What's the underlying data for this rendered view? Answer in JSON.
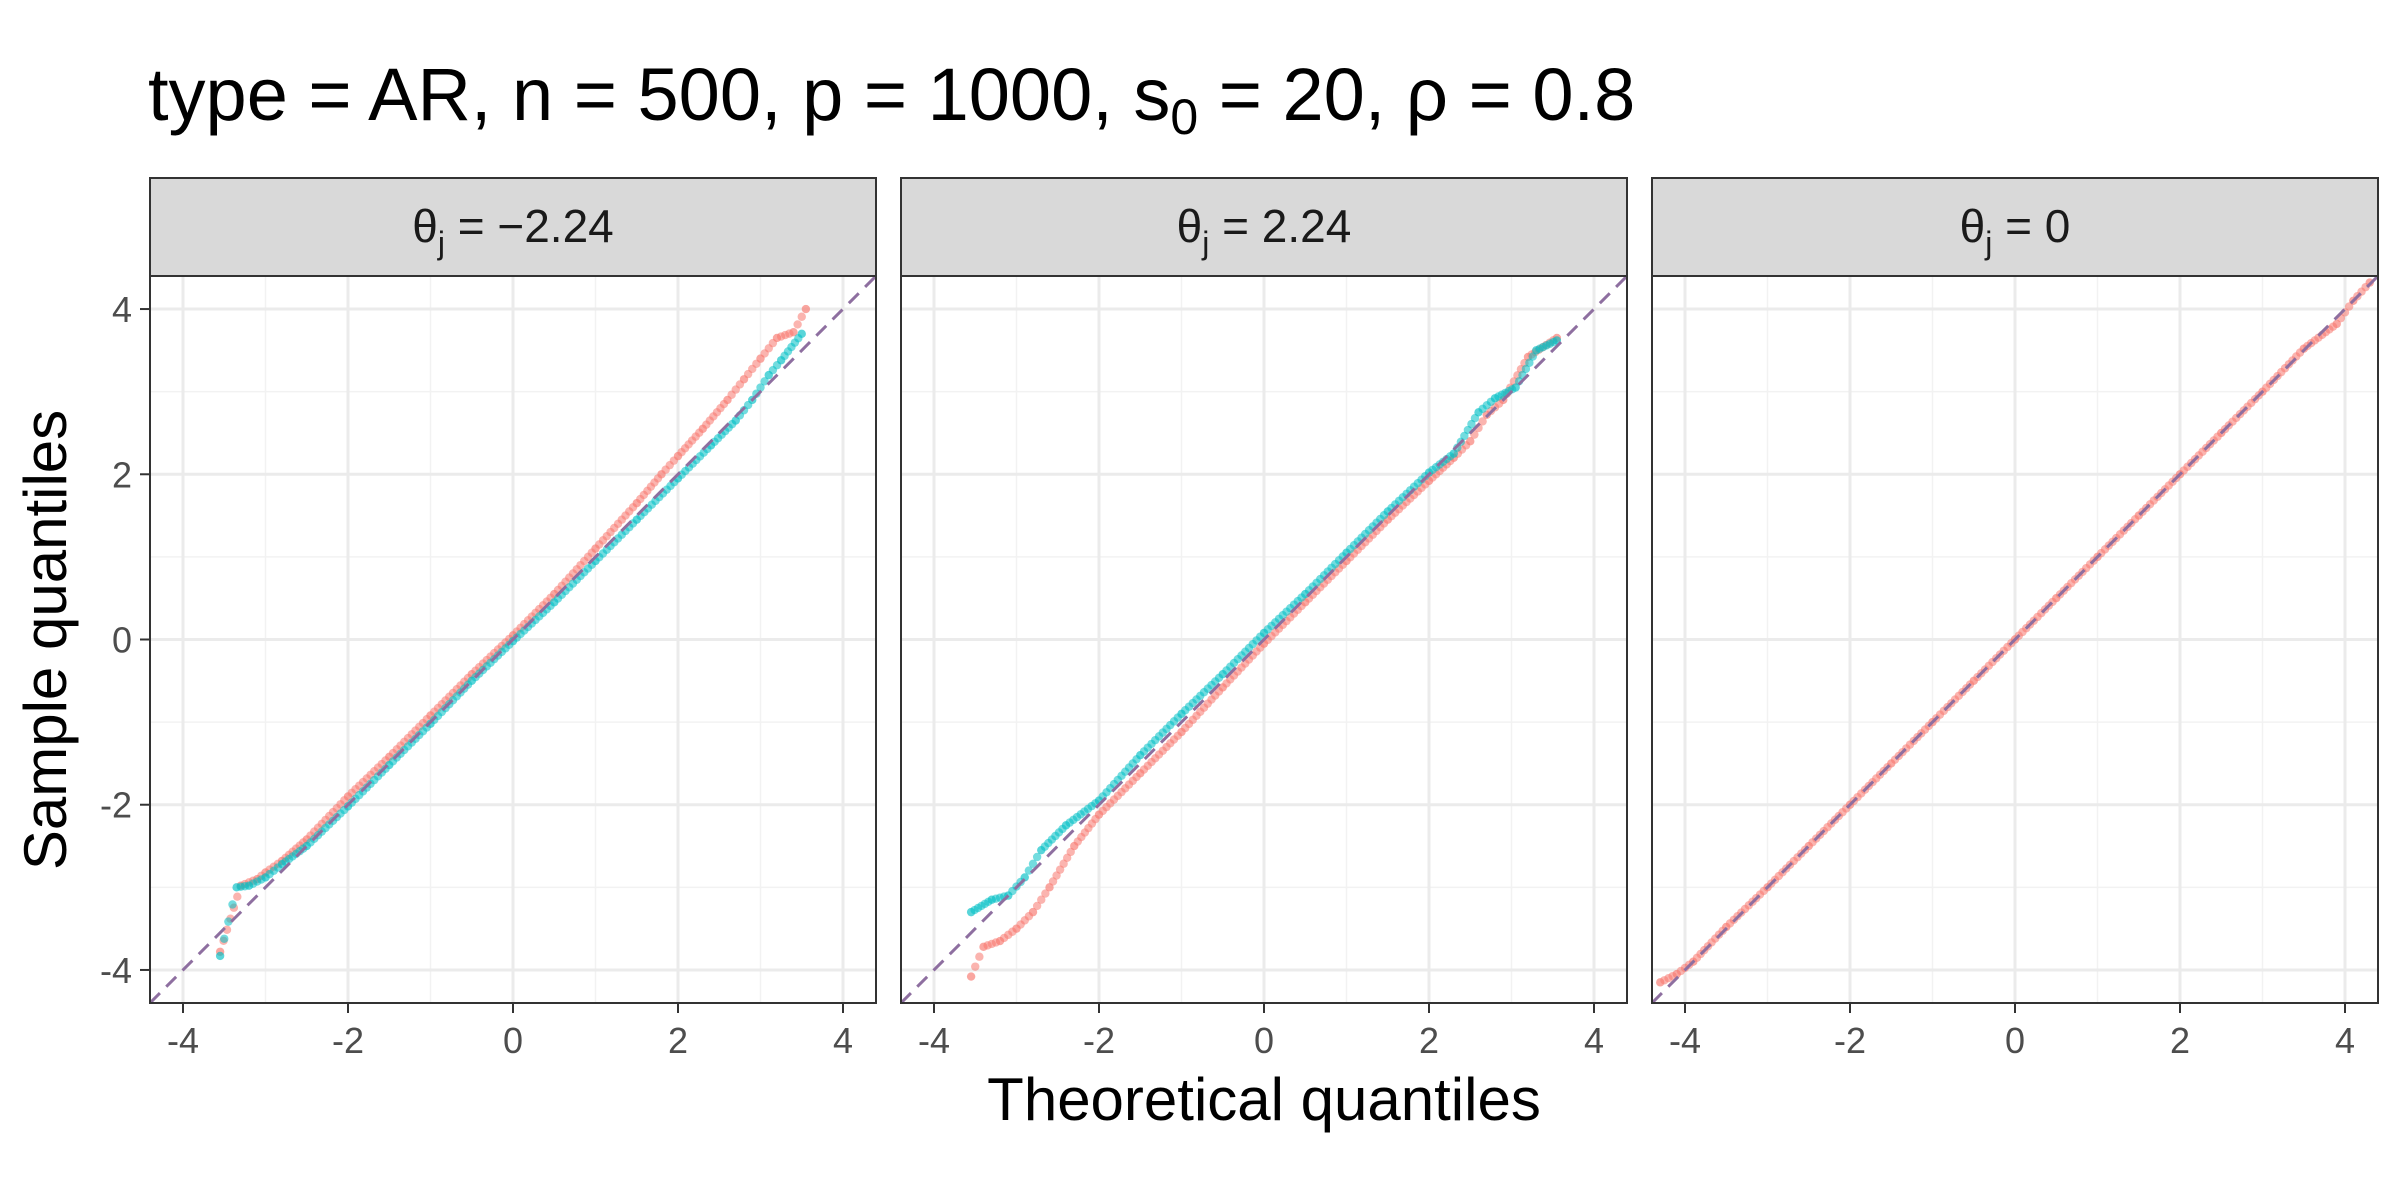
{
  "title_parts": {
    "prefix": "type = AR, n = 500, p = 1000, s",
    "subscript": "0",
    "suffix": " = 20, ρ = 0.8"
  },
  "colors": {
    "series_red": "#F8766D",
    "series_teal": "#00BFC4",
    "reference_line": "#8E6FA0",
    "strip_fill": "#D9D9D9",
    "grid": "#EBEBEB"
  },
  "chart_data": {
    "type": "scatter",
    "subtype": "qq-plot, faceted",
    "xlabel": "Theoretical quantiles",
    "ylabel": "Sample quantiles",
    "xlim": [
      -4.4,
      4.4
    ],
    "ylim": [
      -4.4,
      4.4
    ],
    "x_ticks": [
      "-4",
      "-2",
      "0",
      "2",
      "4"
    ],
    "y_ticks": [
      "-4",
      "-2",
      "0",
      "2",
      "4"
    ],
    "grid": true,
    "reference_line": {
      "slope": 1,
      "intercept": 0,
      "style": "dashed"
    },
    "facets": [
      {
        "label": "θj = −2.24",
        "label_base": "θ",
        "label_sub": "j",
        "label_rest": " = −2.24",
        "series": [
          {
            "color": "#F8766D",
            "points": [
              [
                -3.55,
                -3.78
              ],
              [
                -3.3,
                -2.98
              ],
              [
                -3.1,
                -2.9
              ],
              [
                -3.0,
                -2.82
              ],
              [
                -2.8,
                -2.68
              ],
              [
                -2.5,
                -2.42
              ],
              [
                -2.0,
                -1.9
              ],
              [
                -1.5,
                -1.42
              ],
              [
                -1.0,
                -0.92
              ],
              [
                -0.5,
                -0.42
              ],
              [
                0.0,
                0.05
              ],
              [
                0.5,
                0.55
              ],
              [
                1.0,
                1.1
              ],
              [
                1.5,
                1.65
              ],
              [
                1.8,
                2.0
              ],
              [
                2.0,
                2.22
              ],
              [
                2.3,
                2.55
              ],
              [
                2.6,
                2.9
              ],
              [
                2.8,
                3.15
              ],
              [
                3.0,
                3.4
              ],
              [
                3.2,
                3.65
              ],
              [
                3.4,
                3.72
              ],
              [
                3.55,
                4.0
              ]
            ]
          },
          {
            "color": "#00BFC4",
            "points": [
              [
                -3.55,
                -3.83
              ],
              [
                -3.35,
                -3.0
              ],
              [
                -3.2,
                -2.98
              ],
              [
                -3.0,
                -2.88
              ],
              [
                -2.8,
                -2.72
              ],
              [
                -2.5,
                -2.5
              ],
              [
                -2.0,
                -2.02
              ],
              [
                -1.5,
                -1.52
              ],
              [
                -1.0,
                -1.02
              ],
              [
                -0.5,
                -0.5
              ],
              [
                0.0,
                -0.02
              ],
              [
                0.5,
                0.45
              ],
              [
                1.0,
                0.95
              ],
              [
                1.5,
                1.45
              ],
              [
                2.0,
                1.95
              ],
              [
                2.4,
                2.35
              ],
              [
                2.7,
                2.65
              ],
              [
                2.9,
                2.9
              ],
              [
                3.1,
                3.2
              ],
              [
                3.25,
                3.38
              ],
              [
                3.5,
                3.7
              ]
            ]
          }
        ]
      },
      {
        "label": "θj = 2.24",
        "label_base": "θ",
        "label_sub": "j",
        "label_rest": " = 2.24",
        "series": [
          {
            "color": "#F8766D",
            "points": [
              [
                -3.55,
                -4.08
              ],
              [
                -3.4,
                -3.72
              ],
              [
                -3.2,
                -3.65
              ],
              [
                -3.0,
                -3.5
              ],
              [
                -2.8,
                -3.3
              ],
              [
                -2.6,
                -3.0
              ],
              [
                -2.3,
                -2.5
              ],
              [
                -2.0,
                -2.12
              ],
              [
                -1.5,
                -1.62
              ],
              [
                -1.0,
                -1.12
              ],
              [
                -0.5,
                -0.58
              ],
              [
                0.0,
                -0.05
              ],
              [
                0.5,
                0.45
              ],
              [
                1.0,
                0.95
              ],
              [
                1.5,
                1.45
              ],
              [
                2.0,
                1.92
              ],
              [
                2.3,
                2.2
              ],
              [
                2.5,
                2.4
              ],
              [
                2.7,
                2.72
              ],
              [
                2.9,
                2.9
              ],
              [
                3.2,
                3.42
              ],
              [
                3.55,
                3.65
              ]
            ]
          },
          {
            "color": "#00BFC4",
            "points": [
              [
                -3.55,
                -3.3
              ],
              [
                -3.3,
                -3.15
              ],
              [
                -3.1,
                -3.1
              ],
              [
                -2.9,
                -2.88
              ],
              [
                -2.7,
                -2.55
              ],
              [
                -2.4,
                -2.25
              ],
              [
                -2.0,
                -1.95
              ],
              [
                -1.5,
                -1.4
              ],
              [
                -1.0,
                -0.9
              ],
              [
                -0.5,
                -0.42
              ],
              [
                0.0,
                0.08
              ],
              [
                0.5,
                0.55
              ],
              [
                1.0,
                1.05
              ],
              [
                1.5,
                1.55
              ],
              [
                2.0,
                2.02
              ],
              [
                2.3,
                2.25
              ],
              [
                2.6,
                2.75
              ],
              [
                2.8,
                2.92
              ],
              [
                3.05,
                3.05
              ],
              [
                3.3,
                3.5
              ],
              [
                3.55,
                3.62
              ]
            ]
          }
        ]
      },
      {
        "label": "θj = 0",
        "label_base": "θ",
        "label_sub": "j",
        "label_rest": " = 0",
        "series": [
          {
            "color": "#F8766D",
            "points": [
              [
                -4.3,
                -4.15
              ],
              [
                -4.1,
                -4.05
              ],
              [
                -3.9,
                -3.9
              ],
              [
                -3.5,
                -3.48
              ],
              [
                -3.0,
                -3.0
              ],
              [
                -2.5,
                -2.5
              ],
              [
                -2.0,
                -2.0
              ],
              [
                -1.5,
                -1.5
              ],
              [
                -1.0,
                -1.0
              ],
              [
                -0.5,
                -0.5
              ],
              [
                0.0,
                0.0
              ],
              [
                0.5,
                0.5
              ],
              [
                1.0,
                1.0
              ],
              [
                1.5,
                1.5
              ],
              [
                2.0,
                2.0
              ],
              [
                2.5,
                2.5
              ],
              [
                3.0,
                3.0
              ],
              [
                3.5,
                3.52
              ],
              [
                3.9,
                3.82
              ],
              [
                4.1,
                4.1
              ],
              [
                4.3,
                4.32
              ]
            ]
          }
        ]
      }
    ]
  }
}
